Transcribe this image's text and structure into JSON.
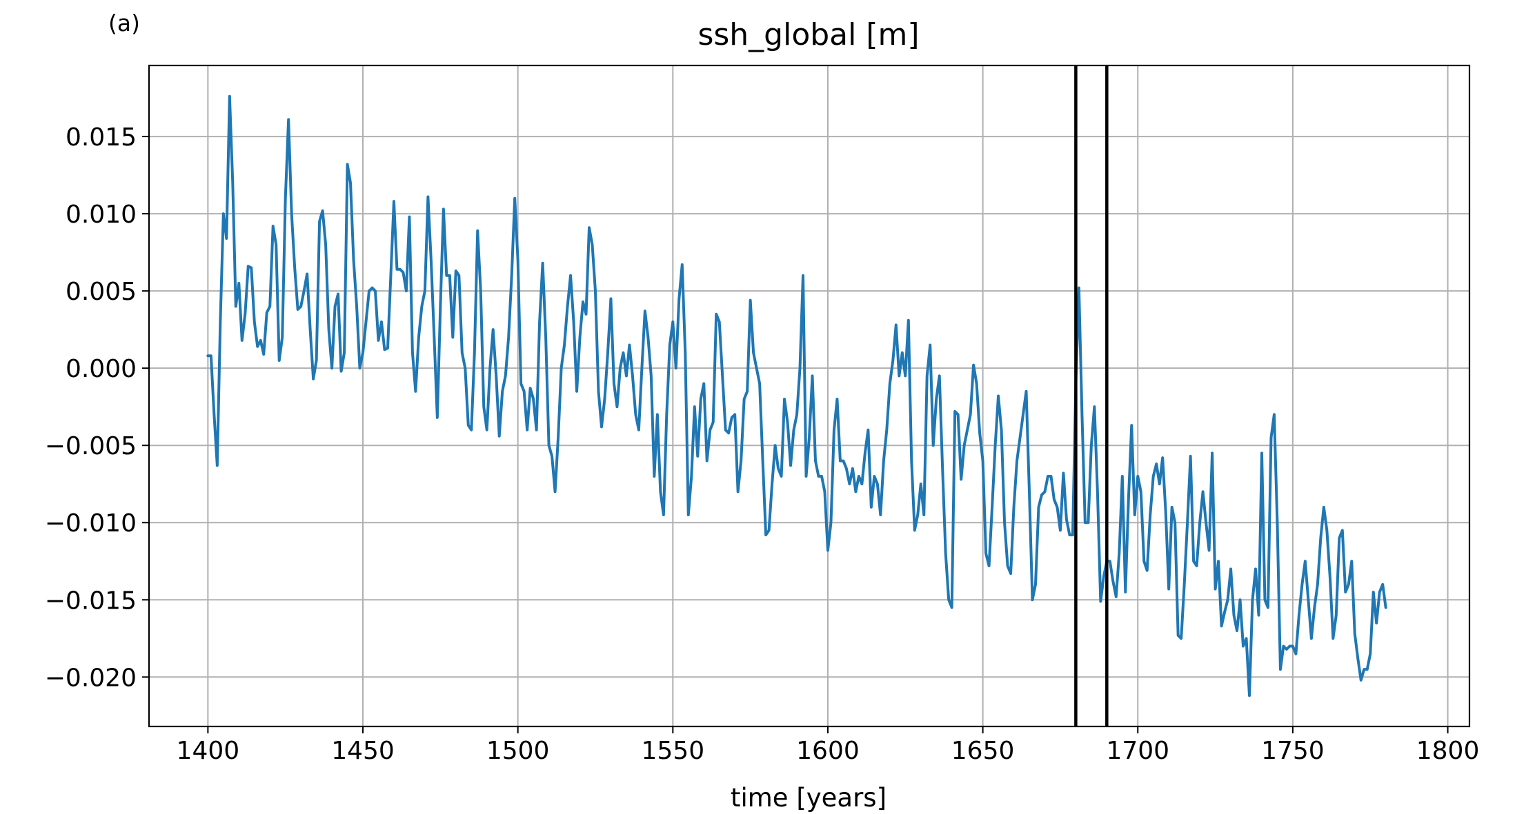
{
  "panel_label": "(a)",
  "chart_data": {
    "type": "line",
    "title": "ssh_global [m]",
    "xlabel": "time [years]",
    "ylabel": "",
    "xlim": [
      1381,
      1807
    ],
    "ylim": [
      -0.0232,
      0.0196
    ],
    "xticks": [
      1400,
      1450,
      1500,
      1550,
      1600,
      1650,
      1700,
      1750,
      1800
    ],
    "xtick_labels": [
      "1400",
      "1450",
      "1500",
      "1550",
      "1600",
      "1650",
      "1700",
      "1750",
      "1800"
    ],
    "yticks": [
      0.015,
      0.01,
      0.005,
      0.0,
      -0.005,
      -0.01,
      -0.015,
      -0.02
    ],
    "ytick_labels": [
      "0.015",
      "0.010",
      "0.005",
      "0.000",
      "−0.005",
      "−0.010",
      "−0.015",
      "−0.020"
    ],
    "grid": true,
    "series_color": "#1f77b4",
    "vlines": [
      1680,
      1690
    ],
    "vline_color": "#000000",
    "series": [
      {
        "x_start": 1400,
        "x_step": 1,
        "values": [
          0.0008,
          0.0008,
          -0.003,
          -0.0063,
          0.003,
          0.01,
          0.0084,
          0.0176,
          0.012,
          0.004,
          0.0055,
          0.0018,
          0.0035,
          0.0066,
          0.0065,
          0.003,
          0.0014,
          0.0018,
          0.0009,
          0.0036,
          0.004,
          0.0092,
          0.008,
          0.0005,
          0.002,
          0.011,
          0.0161,
          0.01,
          0.0065,
          0.0038,
          0.004,
          0.005,
          0.0061,
          0.0025,
          -0.0007,
          0.0005,
          0.0095,
          0.0102,
          0.008,
          0.0025,
          0.0,
          0.004,
          0.0048,
          -0.0002,
          0.001,
          0.0132,
          0.012,
          0.007,
          0.004,
          0.0,
          0.001,
          0.003,
          0.005,
          0.0052,
          0.005,
          0.0018,
          0.003,
          0.0012,
          0.0013,
          0.006,
          0.0108,
          0.0064,
          0.0064,
          0.0062,
          0.005,
          0.0098,
          0.001,
          -0.0015,
          0.002,
          0.004,
          0.005,
          0.0111,
          0.007,
          0.002,
          -0.0032,
          0.004,
          0.0103,
          0.006,
          0.006,
          0.002,
          0.0063,
          0.006,
          0.001,
          0.0,
          -0.0037,
          -0.004,
          0.001,
          0.0089,
          0.005,
          -0.0025,
          -0.004,
          0.0,
          0.0025,
          -0.0005,
          -0.0044,
          -0.0015,
          -0.0005,
          0.002,
          0.006,
          0.011,
          0.007,
          -0.001,
          -0.0015,
          -0.004,
          -0.0013,
          -0.002,
          -0.004,
          0.003,
          0.0068,
          0.002,
          -0.005,
          -0.0057,
          -0.008,
          -0.0045,
          0.0,
          0.0015,
          0.004,
          0.006,
          0.003,
          -0.0015,
          0.002,
          0.0043,
          0.0035,
          0.0091,
          0.008,
          0.005,
          -0.0015,
          -0.0038,
          -0.002,
          0.001,
          0.0045,
          -0.001,
          -0.0025,
          0.0,
          0.001,
          -0.0005,
          0.0015,
          -0.0005,
          -0.003,
          -0.004,
          0.0,
          0.0037,
          0.002,
          -0.0005,
          -0.007,
          -0.003,
          -0.008,
          -0.0095,
          -0.003,
          0.0015,
          0.003,
          0.0,
          0.0045,
          0.0067,
          0.001,
          -0.0095,
          -0.007,
          -0.0025,
          -0.0057,
          -0.002,
          -0.001,
          -0.006,
          -0.004,
          -0.0035,
          0.0035,
          0.003,
          -0.0005,
          -0.004,
          -0.0042,
          -0.0032,
          -0.003,
          -0.008,
          -0.006,
          -0.002,
          -0.0015,
          0.0044,
          0.001,
          0.0,
          -0.001,
          -0.006,
          -0.0108,
          -0.0105,
          -0.0075,
          -0.005,
          -0.0065,
          -0.007,
          -0.002,
          -0.0035,
          -0.0063,
          -0.004,
          -0.003,
          0.0,
          0.006,
          -0.007,
          -0.0045,
          -0.0005,
          -0.006,
          -0.007,
          -0.007,
          -0.008,
          -0.0118,
          -0.01,
          -0.004,
          -0.002,
          -0.006,
          -0.006,
          -0.0065,
          -0.0075,
          -0.0065,
          -0.008,
          -0.007,
          -0.0075,
          -0.0055,
          -0.004,
          -0.009,
          -0.007,
          -0.0075,
          -0.0095,
          -0.006,
          -0.004,
          -0.001,
          0.0005,
          0.0028,
          -0.0005,
          0.001,
          -0.0005,
          0.0031,
          -0.006,
          -0.0105,
          -0.0095,
          -0.0075,
          -0.0095,
          -0.0005,
          0.0015,
          -0.005,
          -0.002,
          -0.0005,
          -0.0065,
          -0.012,
          -0.015,
          -0.0155,
          -0.0028,
          -0.003,
          -0.0072,
          -0.005,
          -0.004,
          -0.003,
          0.0002,
          -0.001,
          -0.0042,
          -0.006,
          -0.012,
          -0.0128,
          -0.009,
          -0.005,
          -0.0018,
          -0.004,
          -0.01,
          -0.0128,
          -0.0133,
          -0.009,
          -0.006,
          -0.0045,
          -0.003,
          -0.0015,
          -0.008,
          -0.015,
          -0.014,
          -0.009,
          -0.0082,
          -0.008,
          -0.007,
          -0.007,
          -0.0085,
          -0.009,
          -0.0105,
          -0.0068,
          -0.0098,
          -0.0108,
          -0.0108,
          -0.001,
          0.0052,
          -0.003,
          -0.01,
          -0.01,
          -0.005,
          -0.0025,
          -0.008,
          -0.0151,
          -0.0135,
          -0.0125,
          -0.0125,
          -0.0138,
          -0.0148,
          -0.012,
          -0.007,
          -0.0145,
          -0.0085,
          -0.0037,
          -0.0095,
          -0.007,
          -0.008,
          -0.0125,
          -0.0131,
          -0.0095,
          -0.007,
          -0.0062,
          -0.0075,
          -0.0058,
          -0.0093,
          -0.0143,
          -0.009,
          -0.01,
          -0.0173,
          -0.0175,
          -0.014,
          -0.01,
          -0.0057,
          -0.0125,
          -0.0128,
          -0.01,
          -0.008,
          -0.01,
          -0.0118,
          -0.0055,
          -0.0143,
          -0.0125,
          -0.0167,
          -0.0158,
          -0.015,
          -0.013,
          -0.016,
          -0.017,
          -0.015,
          -0.018,
          -0.0175,
          -0.0212,
          -0.015,
          -0.013,
          -0.016,
          -0.0055,
          -0.015,
          -0.0155,
          -0.0045,
          -0.003,
          -0.01,
          -0.0195,
          -0.018,
          -0.0182,
          -0.018,
          -0.018,
          -0.0185,
          -0.016,
          -0.014,
          -0.0125,
          -0.015,
          -0.0175,
          -0.0155,
          -0.014,
          -0.011,
          -0.009,
          -0.0105,
          -0.0135,
          -0.0175,
          -0.016,
          -0.011,
          -0.0105,
          -0.0145,
          -0.014,
          -0.0125,
          -0.0172,
          -0.0188,
          -0.0202,
          -0.0195,
          -0.0195,
          -0.0185,
          -0.0145,
          -0.0165,
          -0.0145,
          -0.014,
          -0.0155
        ]
      }
    ]
  }
}
